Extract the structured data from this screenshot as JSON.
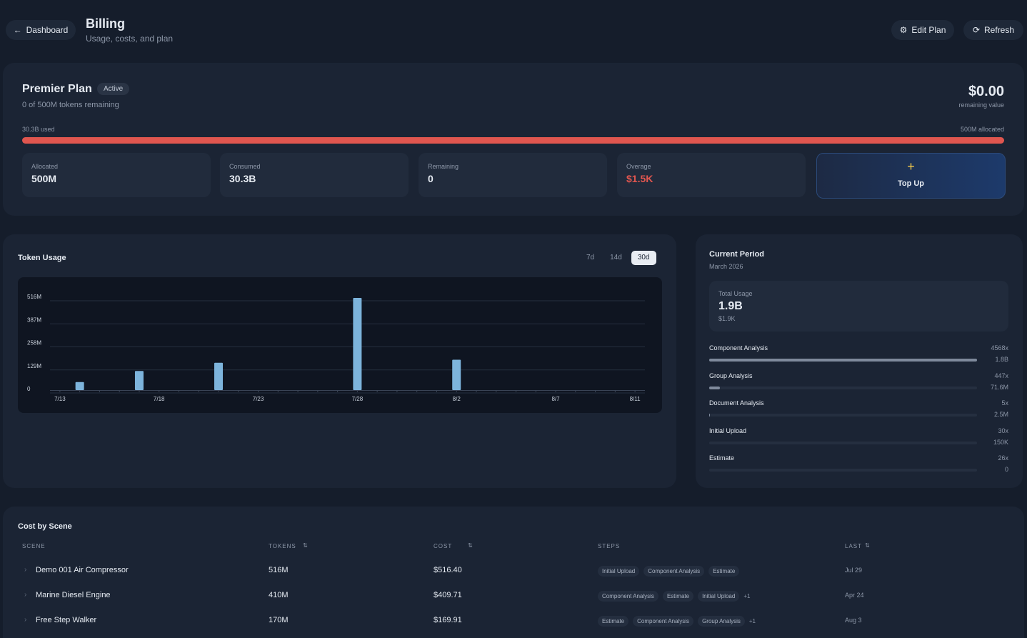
{
  "header": {
    "back": "Dashboard",
    "title": "Billing",
    "subtitle": "Usage, costs, and plan",
    "actions": [
      "Edit Plan",
      "Refresh"
    ]
  },
  "plan": {
    "name": "Premier Plan",
    "status": "Active",
    "remaining": "0 of 500M tokens remaining",
    "value": "$0.00",
    "value_label": "remaining value",
    "used": "30.3B used",
    "allocated": "500M allocated",
    "stats": [
      {
        "label": "Allocated",
        "value": "500M"
      },
      {
        "label": "Consumed",
        "value": "30.3B"
      },
      {
        "label": "Remaining",
        "value": "0"
      },
      {
        "label": "Overage",
        "value": "$1.5K"
      }
    ],
    "top_up": "Top Up"
  },
  "usage": {
    "ranges": [
      "7d",
      "14d",
      "30d"
    ],
    "active_range": 2
  },
  "chart_data": {
    "type": "bar",
    "title": "Token Usage",
    "categories": [
      "7/13",
      null,
      null,
      null,
      null,
      "7/18",
      null,
      null,
      null,
      null,
      "7/23",
      null,
      null,
      null,
      null,
      "7/28",
      null,
      null,
      null,
      null,
      "8/2",
      null,
      null,
      null,
      null,
      "8/7",
      null,
      null,
      null,
      "8/11"
    ],
    "values": [
      0,
      45000000,
      0,
      0,
      107000000,
      0,
      0,
      0,
      153000000,
      0,
      0,
      0,
      0,
      0,
      0,
      516000000,
      0,
      0,
      0,
      0,
      170000000,
      0,
      0,
      0,
      0,
      0,
      0,
      0,
      0,
      0
    ],
    "color": "#7db4dc",
    "ylim": [
      0,
      516000000
    ],
    "yticks": [
      0,
      {
        "value": 129000000,
        "label": "129M"
      },
      {
        "value": 258000000,
        "label": "258M"
      },
      {
        "value": 387000000,
        "label": "387M"
      },
      {
        "value": 516000000,
        "label": "516M"
      }
    ],
    "grid": true
  },
  "period": {
    "title": "Current Period",
    "subtitle": "March 2026",
    "total_label": "Total Usage",
    "total": "1.9B",
    "total_cost": "$1.9K",
    "items": [
      {
        "name": "Component Analysis",
        "count": "4568x"
      },
      {
        "name": "Group Analysis",
        "count": "447x"
      },
      {
        "name": "Document Analysis",
        "count": "5x"
      },
      {
        "name": "Initial Upload",
        "count": "30x"
      },
      {
        "name": "Estimate",
        "count": "26x"
      }
    ],
    "values": [
      1800000000,
      71600000,
      2500000,
      150000,
      0
    ],
    "value_labels": [
      "1.8B",
      "71.6M",
      "2.5M",
      "150K",
      "0"
    ]
  },
  "scenes": {
    "title": "Cost by Scene",
    "columns": [
      "SCENE",
      "TOKENS",
      "COST",
      "STEPS",
      "LAST"
    ],
    "sortable": [
      false,
      true,
      true,
      false,
      true
    ],
    "rows": [
      {
        "scene": "Demo 001 Air Compressor",
        "tokens": "516M",
        "cost": "$516.40",
        "steps": [
          "Initial Upload",
          "Component Analysis",
          "Estimate"
        ],
        "last": "Jul 29"
      },
      {
        "scene": "Marine Diesel Engine",
        "tokens": "410M",
        "cost": "$409.71",
        "steps": [
          "Component Analysis",
          "Estimate",
          "Initial Upload"
        ],
        "more": "+1",
        "last": "Apr 24"
      },
      {
        "scene": "Free Step Walker",
        "tokens": "170M",
        "cost": "$169.91",
        "steps": [
          "Estimate",
          "Component Analysis",
          "Group Analysis"
        ],
        "more": "+1",
        "last": "Aug 3"
      }
    ]
  }
}
